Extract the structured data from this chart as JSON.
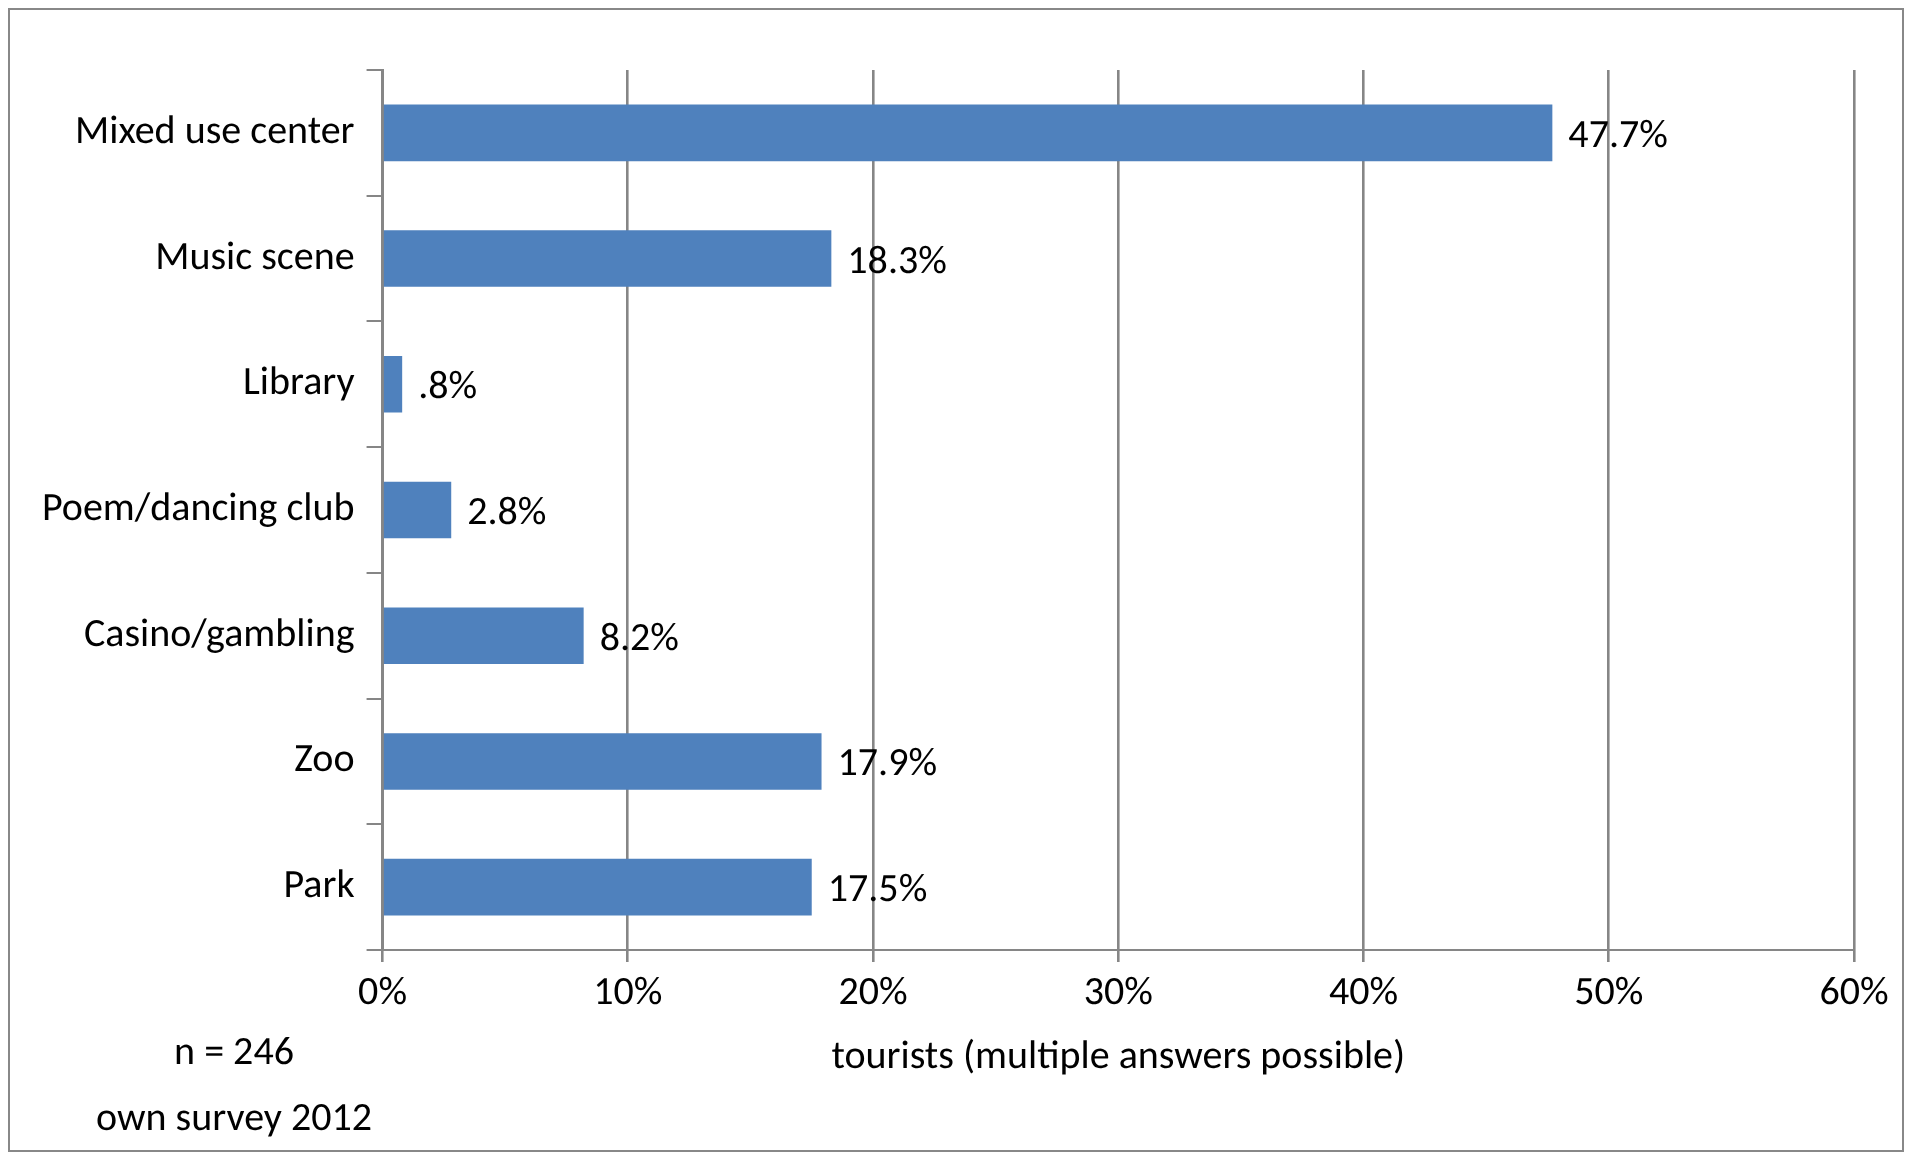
{
  "chart_data": {
    "type": "bar",
    "orientation": "horizontal",
    "categories": [
      "Mixed use center",
      "Music scene",
      "Library",
      "Poem/dancing club",
      "Casino/gambling",
      "Zoo",
      "Park"
    ],
    "values": [
      47.7,
      18.3,
      0.8,
      2.8,
      8.2,
      17.9,
      17.5
    ],
    "value_labels": [
      "47.7%",
      "18.3%",
      ".8%",
      "2.8%",
      "8.2%",
      "17.9%",
      "17.5%"
    ],
    "color": "#4f81bd",
    "xlim": [
      0,
      60
    ],
    "xticks": [
      {
        "value": 0,
        "label": "0%"
      },
      {
        "value": 10,
        "label": "10%"
      },
      {
        "value": 20,
        "label": "20%"
      },
      {
        "value": 30,
        "label": "30%"
      },
      {
        "value": 40,
        "label": "40%"
      },
      {
        "value": 50,
        "label": "50%"
      },
      {
        "value": 60,
        "label": "60%"
      }
    ],
    "xlabel": "tourists (multiple answers possible)",
    "grid": "x",
    "legend": false,
    "annotations": [
      "n = 246",
      "own survey 2012"
    ]
  }
}
